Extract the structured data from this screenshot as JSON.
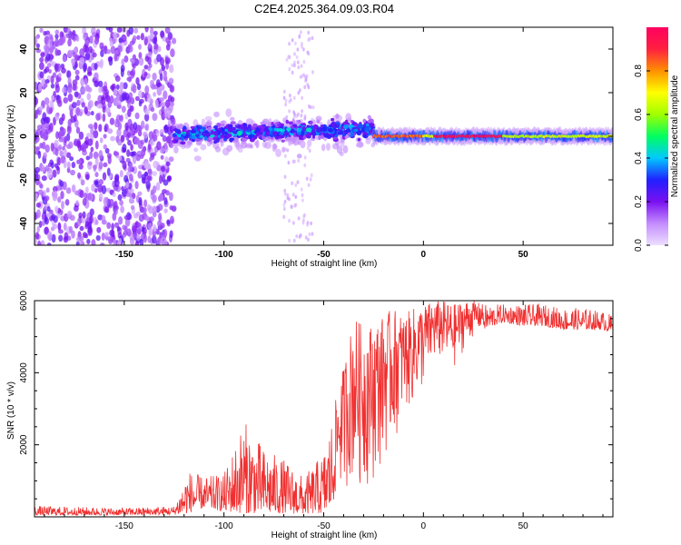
{
  "title": "C2E4.2025.364.09.03.R04",
  "chart_data": [
    {
      "type": "heatmap",
      "title": "C2E4.2025.364.09.03.R04",
      "xlabel": "Height of straight line (km)",
      "ylabel": "Frequency (Hz)",
      "xlim": [
        -195,
        95
      ],
      "ylim": [
        -50,
        50
      ],
      "xticks": [
        -150,
        -100,
        -50,
        0,
        50
      ],
      "yticks": [
        -40,
        -20,
        0,
        20,
        40
      ],
      "colorbar": {
        "label": "Normalized spectral amplitude",
        "range": [
          0,
          1
        ],
        "ticks": [
          "0.0",
          "0.2",
          "0.4",
          "0.6",
          "0.8"
        ],
        "colors": [
          "#ece0ff",
          "#c48cff",
          "#7a10f0",
          "#2020ff",
          "#00c8ff",
          "#00ff60",
          "#a0ff00",
          "#ffff00",
          "#ff9000",
          "#ff2040",
          "#ff0060"
        ]
      },
      "ridge": {
        "description_note": "",
        "segments": [
          {
            "x_range": [
              -195,
              -125
            ],
            "freq_center": 0,
            "freq_spread": 50,
            "amplitude": 0.2
          },
          {
            "x_range": [
              -125,
              -25
            ],
            "freq_center": 2,
            "freq_spread": 8,
            "amplitude": 0.35
          },
          {
            "x_range": [
              -25,
              95
            ],
            "freq_center": 0,
            "freq_spread": 3,
            "amplitude": 0.9
          }
        ]
      }
    },
    {
      "type": "line",
      "xlabel": "Height of straight line (km)",
      "ylabel": "SNR (10 * v/v)",
      "xlim": [
        -195,
        95
      ],
      "ylim": [
        0,
        6000
      ],
      "xticks": [
        -150,
        -100,
        -50,
        0,
        50
      ],
      "yticks": [
        2000,
        4000,
        6000
      ],
      "series": [
        {
          "name": "SNR",
          "color": "#f03030",
          "envelope_x": [
            -195,
            -150,
            -125,
            -118,
            -110,
            -100,
            -90,
            -80,
            -70,
            -60,
            -50,
            -45,
            -40,
            -35,
            -30,
            -25,
            -20,
            -15,
            -10,
            -5,
            0,
            5,
            10,
            15,
            20,
            25,
            30,
            40,
            50,
            60,
            70,
            80,
            90,
            95
          ],
          "envelope_low": [
            50,
            50,
            60,
            100,
            250,
            150,
            100,
            100,
            100,
            80,
            100,
            300,
            800,
            800,
            700,
            1000,
            1500,
            2000,
            2800,
            3000,
            3500,
            4200,
            4300,
            4000,
            4600,
            5000,
            5200,
            5400,
            5300,
            5300,
            5200,
            5200,
            5200,
            5100
          ],
          "envelope_high": [
            300,
            250,
            300,
            1300,
            1100,
            1200,
            2700,
            1900,
            1600,
            1100,
            1800,
            3000,
            4200,
            5600,
            5300,
            5400,
            5600,
            5800,
            5600,
            5800,
            5900,
            6000,
            6000,
            5900,
            6000,
            6000,
            5900,
            5900,
            5900,
            5900,
            5800,
            5800,
            5700,
            5600
          ]
        }
      ]
    }
  ]
}
